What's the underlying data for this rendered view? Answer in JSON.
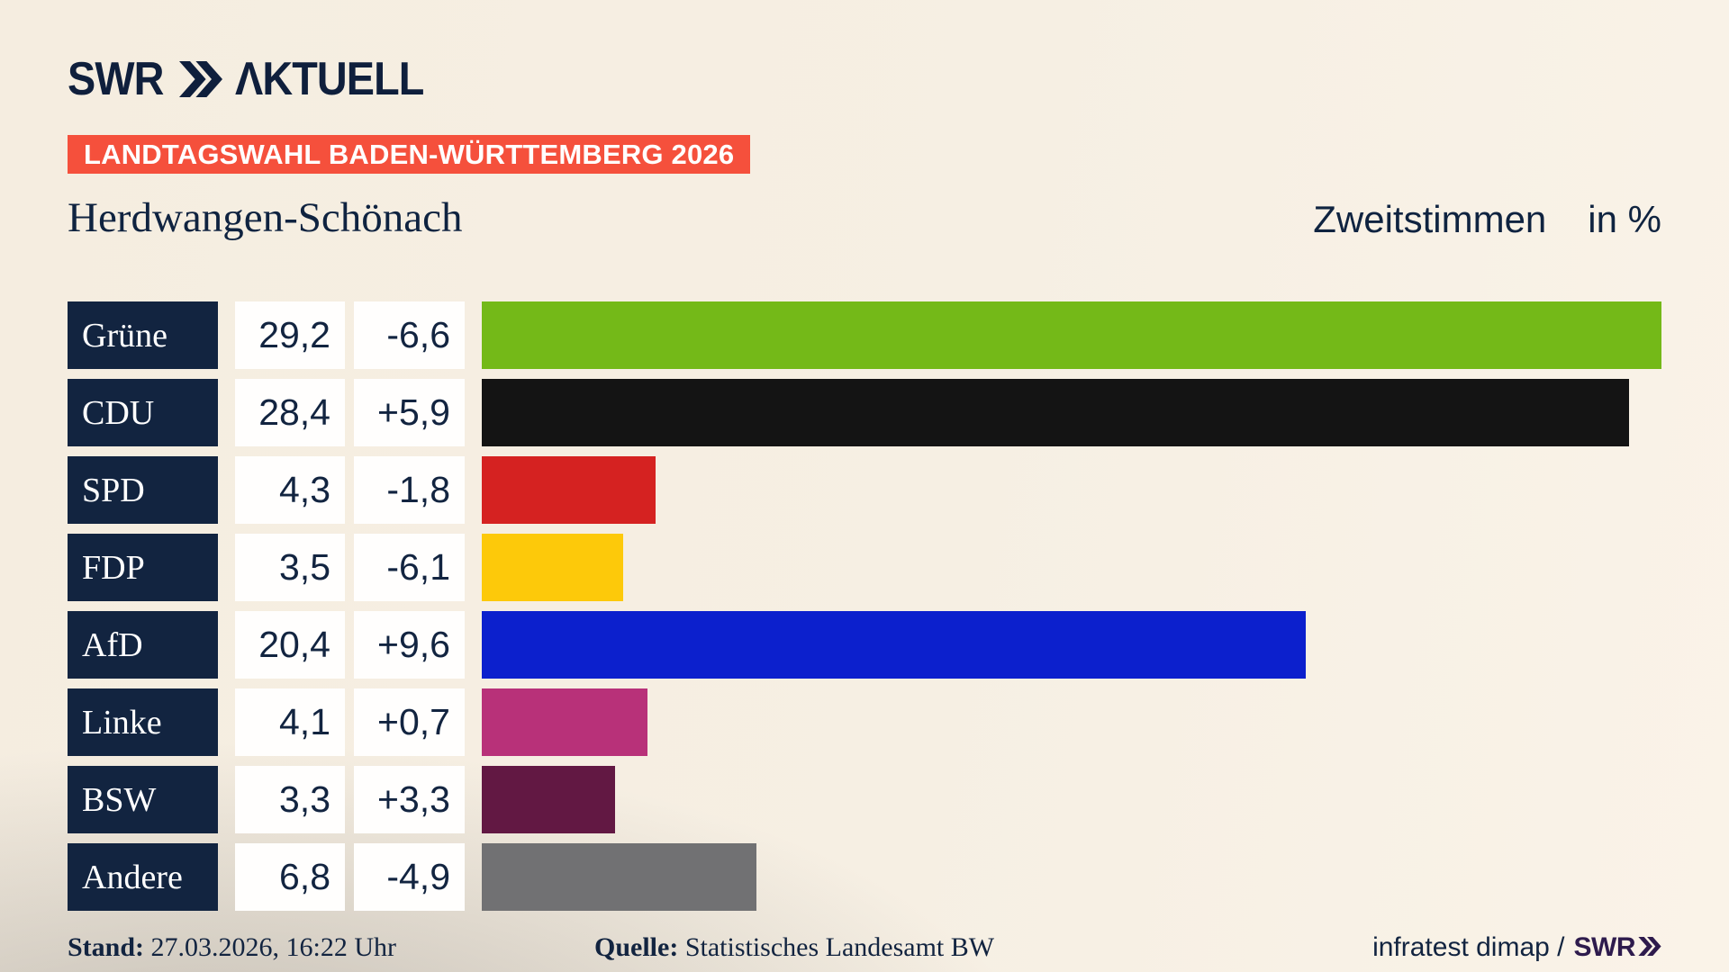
{
  "logo": {
    "brand": "SWR",
    "program": "ΛKTUELL",
    "chevron_icon": "double-chevron-right",
    "color": "#0f1f3c"
  },
  "badge": {
    "label": "LANDTAGSWAHL BADEN-WÜRTTEMBERG 2026",
    "background": "#f5503c",
    "text_color": "#ffffff"
  },
  "header": {
    "title": "Herdwangen-Schönach",
    "subtitle": "Zweitstimmen",
    "unit": "in %"
  },
  "chart_data": {
    "type": "bar",
    "orientation": "horizontal",
    "title": "Zweitstimmen in % — Herdwangen-Schönach, Landtagswahl Baden-Württemberg 2026",
    "categories": [
      "Grüne",
      "CDU",
      "SPD",
      "FDP",
      "AfD",
      "Linke",
      "BSW",
      "Andere"
    ],
    "values": [
      29.2,
      28.4,
      4.3,
      3.5,
      20.4,
      4.1,
      3.3,
      6.8
    ],
    "value_labels": [
      "29,2",
      "28,4",
      "4,3",
      "3,5",
      "20,4",
      "4,1",
      "3,3",
      "6,8"
    ],
    "change_labels": [
      "-6,6",
      "+5,9",
      "-1,8",
      "-6,1",
      "+9,6",
      "+0,7",
      "+3,3",
      "-4,9"
    ],
    "bar_colors": [
      "#74b918",
      "#141414",
      "#d52221",
      "#fdc90a",
      "#0c20cd",
      "#b83179",
      "#621843",
      "#717173"
    ],
    "label_box_color": "#122440",
    "value_box_color": "#ffffff",
    "xlim": [
      0,
      29.2
    ],
    "grid": false,
    "legend": false
  },
  "footer": {
    "stand_label": "Stand:",
    "stand_value": "27.03.2026, 16:22 Uhr",
    "quelle_label": "Quelle:",
    "quelle_value": "Statistisches Landesamt BW",
    "credit_text": "infratest dimap /",
    "credit_brand": "SWR",
    "credit_chevron_icon": "double-chevron-right"
  }
}
